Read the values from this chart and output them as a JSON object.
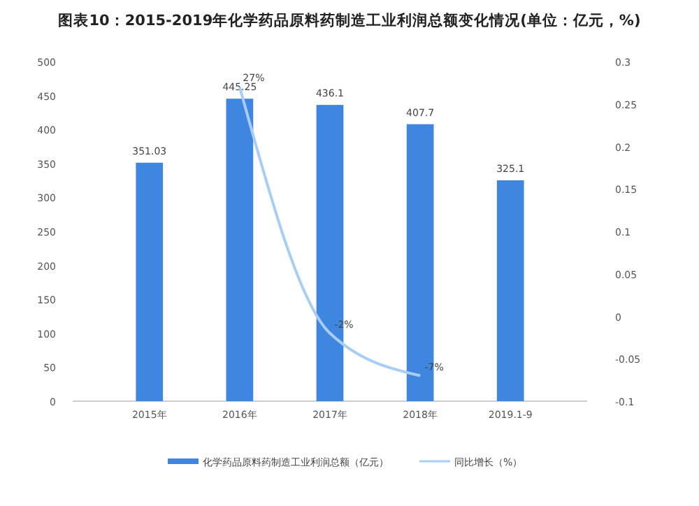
{
  "chart_data": {
    "type": "bar",
    "title": "图表10：2015-2019年化学药品原料药制造工业利润总额变化情况(单位：亿元，%)",
    "categories": [
      "2015年",
      "2016年",
      "2017年",
      "2018年",
      "2019.1-9"
    ],
    "series": [
      {
        "name": "化学药品原料药制造工业利润总额（亿元）",
        "color": "#3f86e0",
        "values": [
          351.03,
          445.25,
          436.1,
          407.7,
          325.1
        ],
        "value_labels": [
          "351.03",
          "445.25",
          "436.1",
          "407.7",
          "325.1"
        ]
      },
      {
        "name": "同比增长（%）",
        "type": "line",
        "axis": "y2",
        "color": "#a9cdf5",
        "values": [
          null,
          0.27,
          -0.02,
          -0.07,
          null
        ],
        "value_labels": [
          null,
          "27%",
          "-2%",
          "-7%",
          null
        ]
      }
    ],
    "ylim": [
      0,
      500
    ],
    "yticks": [
      0,
      50,
      100,
      150,
      200,
      250,
      300,
      350,
      400,
      450,
      500
    ],
    "y2lim": [
      -0.1,
      0.3
    ],
    "y2ticks": [
      -0.1,
      -0.05,
      0,
      0.05,
      0.1,
      0.15,
      0.2,
      0.25,
      0.3
    ],
    "grid": false,
    "legend": "bottom",
    "marker": "none"
  }
}
